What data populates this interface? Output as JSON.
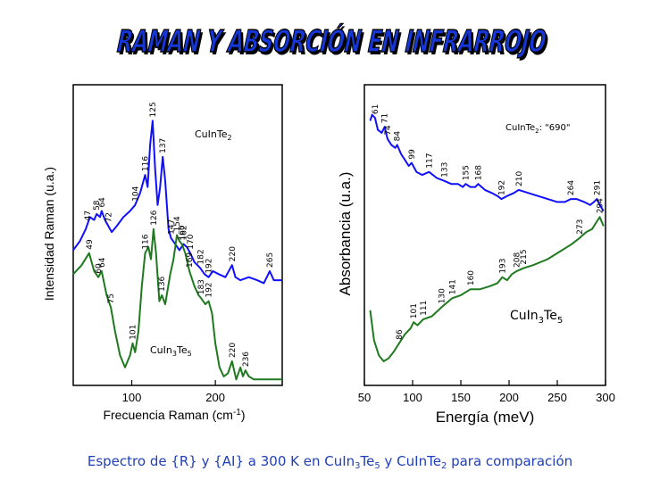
{
  "slide_title": "RAMAN Y ABSORCIÓN EN INFRARROJO",
  "caption": {
    "p1": "Espectro de {R} y {AI} a 300 K en CuIn",
    "s1": "3",
    "p2": "Te",
    "s2": "5",
    "p3": " y CuInTe",
    "s3": "2",
    "p4": " para comparación"
  },
  "colors": {
    "title_fill": "#1537d8",
    "title_shadow": "#000000",
    "blue_series": "#1010ff",
    "green_series": "#1f7a1f",
    "caption": "#1f3fb8"
  },
  "chart_data": [
    {
      "type": "line",
      "xlabel": "Frecuencia Raman (cm",
      "xlabel_sup": "-1",
      "xlabel_end": ")",
      "ylabel": "Intensidad Raman  (u.a.)",
      "xlim": [
        30,
        280
      ],
      "ylim": [
        0,
        1
      ],
      "x_ticks": [
        100,
        200
      ],
      "series": [
        {
          "name": "CuInTe₂",
          "label_main": "CuInTe",
          "label_sub": "2",
          "color": "#1010ff",
          "x": [
            30,
            38,
            45,
            50,
            55,
            58,
            62,
            64,
            68,
            72,
            76,
            82,
            90,
            98,
            104,
            110,
            116,
            119,
            122,
            125,
            128,
            131,
            134,
            137,
            140,
            144,
            147,
            152,
            157,
            162,
            166,
            170,
            175,
            182,
            187,
            192,
            197,
            204,
            212,
            220,
            224,
            230,
            240,
            250,
            258,
            265,
            270,
            275,
            280
          ],
          "y": [
            0.45,
            0.48,
            0.52,
            0.56,
            0.55,
            0.57,
            0.56,
            0.58,
            0.55,
            0.53,
            0.51,
            0.53,
            0.56,
            0.58,
            0.6,
            0.64,
            0.7,
            0.66,
            0.8,
            0.88,
            0.72,
            0.6,
            0.66,
            0.76,
            0.68,
            0.52,
            0.49,
            0.47,
            0.45,
            0.47,
            0.46,
            0.44,
            0.41,
            0.39,
            0.37,
            0.36,
            0.38,
            0.37,
            0.36,
            0.4,
            0.36,
            0.35,
            0.36,
            0.35,
            0.34,
            0.38,
            0.35,
            0.35,
            0.35
          ],
          "peak_labels": [
            47,
            58,
            64,
            72,
            104,
            116,
            125,
            137,
            147,
            162,
            170,
            182,
            192,
            220,
            265
          ]
        },
        {
          "name": "CuIn₃Te₅",
          "label_main": "CuIn",
          "label_sub1": "3",
          "label_mid": "Te",
          "label_sub2": "5",
          "color": "#1f7a1f",
          "x": [
            30,
            40,
            49,
            55,
            60,
            64,
            70,
            75,
            80,
            86,
            92,
            98,
            101,
            104,
            108,
            112,
            116,
            120,
            123,
            126,
            129,
            133,
            136,
            140,
            146,
            150,
            154,
            157,
            160,
            164,
            169,
            175,
            180,
            183,
            188,
            192,
            196,
            200,
            205,
            210,
            215,
            220,
            225,
            230,
            233,
            236,
            240,
            246,
            252,
            258,
            264,
            270,
            280
          ],
          "y": [
            0.37,
            0.4,
            0.44,
            0.38,
            0.36,
            0.38,
            0.3,
            0.26,
            0.18,
            0.1,
            0.06,
            0.1,
            0.14,
            0.11,
            0.18,
            0.33,
            0.44,
            0.46,
            0.42,
            0.52,
            0.44,
            0.28,
            0.3,
            0.27,
            0.37,
            0.42,
            0.5,
            0.48,
            0.47,
            0.44,
            0.38,
            0.33,
            0.3,
            0.29,
            0.27,
            0.28,
            0.24,
            0.14,
            0.06,
            0.03,
            0.04,
            0.08,
            0.02,
            0.06,
            0.03,
            0.05,
            0.03,
            0.02,
            0.02,
            0.02,
            0.02,
            0.02,
            0.02
          ],
          "peak_labels": [
            49,
            60,
            64,
            75,
            101,
            116,
            126,
            136,
            154,
            160,
            169,
            183,
            192,
            220,
            236
          ]
        }
      ]
    },
    {
      "type": "line",
      "xlabel": "Energía  (meV)",
      "ylabel": "Absorbancia  (u.a.)",
      "xlim": [
        50,
        300
      ],
      "ylim": [
        0,
        1
      ],
      "x_ticks": [
        50,
        100,
        150,
        200,
        250,
        300
      ],
      "series": [
        {
          "name": "CuInTe₂: \"690\"",
          "label_main": "CuInTe",
          "label_sub": "2",
          "label_end": ": \"690\"",
          "color": "#1010ff",
          "x": [
            56,
            58,
            61,
            64,
            68,
            71,
            74,
            78,
            82,
            84,
            88,
            92,
            96,
            99,
            104,
            110,
            117,
            125,
            133,
            140,
            147,
            152,
            155,
            160,
            165,
            168,
            175,
            182,
            188,
            192,
            198,
            205,
            210,
            220,
            230,
            240,
            250,
            258,
            264,
            270,
            278,
            284,
            288,
            291,
            294,
            298
          ],
          "y": [
            0.88,
            0.9,
            0.89,
            0.85,
            0.84,
            0.86,
            0.82,
            0.8,
            0.79,
            0.8,
            0.77,
            0.75,
            0.73,
            0.74,
            0.71,
            0.7,
            0.71,
            0.69,
            0.68,
            0.67,
            0.67,
            0.66,
            0.67,
            0.66,
            0.66,
            0.67,
            0.65,
            0.64,
            0.63,
            0.62,
            0.63,
            0.64,
            0.65,
            0.64,
            0.63,
            0.62,
            0.61,
            0.61,
            0.62,
            0.62,
            0.61,
            0.6,
            0.61,
            0.62,
            0.6,
            0.58
          ],
          "peak_labels": [
            61,
            71,
            74,
            84,
            99,
            117,
            133,
            155,
            168,
            192,
            210,
            264,
            291
          ]
        },
        {
          "name": "CuIn₃Te₅",
          "label_main": "CuIn",
          "label_sub1": "3",
          "label_mid": "Te",
          "label_sub2": "5",
          "color": "#1f7a1f",
          "x": [
            56,
            60,
            65,
            70,
            75,
            80,
            86,
            92,
            98,
            101,
            105,
            111,
            120,
            130,
            141,
            150,
            160,
            170,
            180,
            188,
            193,
            198,
            203,
            208,
            215,
            225,
            240,
            255,
            265,
            273,
            280,
            286,
            290,
            294,
            298
          ],
          "y": [
            0.25,
            0.15,
            0.1,
            0.08,
            0.09,
            0.11,
            0.14,
            0.17,
            0.19,
            0.21,
            0.2,
            0.22,
            0.23,
            0.26,
            0.29,
            0.3,
            0.32,
            0.32,
            0.33,
            0.34,
            0.36,
            0.35,
            0.37,
            0.38,
            0.39,
            0.4,
            0.42,
            0.45,
            0.47,
            0.49,
            0.51,
            0.52,
            0.54,
            0.56,
            0.53
          ],
          "peak_labels": [
            86,
            101,
            111,
            130,
            141,
            160,
            193,
            208,
            215,
            273,
            294
          ]
        }
      ]
    }
  ]
}
